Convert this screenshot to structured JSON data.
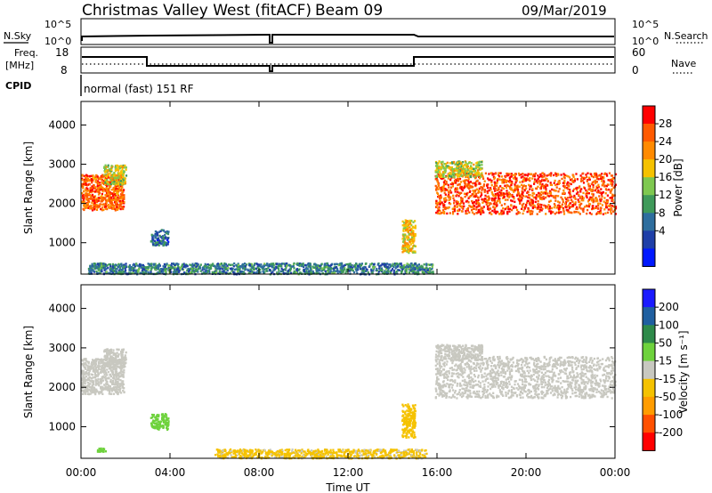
{
  "header": {
    "station": "Christmas Valley West (fitACF)",
    "beam": "Beam 09",
    "date": "09/Mar/2019"
  },
  "strip": {
    "nsky_label": "N.Sky",
    "nsky_ticks": [
      "10^5",
      "10^0"
    ],
    "nsearch_label": "N.Search",
    "nsearch_ticks": [
      "10^5",
      "10^0"
    ],
    "freq_label": "Freq.",
    "freq_unit": "[MHz]",
    "freq_ticks": [
      "18",
      "8"
    ],
    "nave_label": "Nave",
    "nave_ticks": [
      "60",
      "0"
    ],
    "cpid_label": "CPID",
    "cpid_value": "normal (fast) 151 RF"
  },
  "colors": {
    "power_scale": [
      "#0018ff",
      "#1f3fa8",
      "#2e6e9e",
      "#3f9a5a",
      "#7ec850",
      "#f5c200",
      "#ff8a00",
      "#ff5a00",
      "#ff0000"
    ],
    "velocity_scale": [
      "#1a1aff",
      "#1f5fa0",
      "#2e8a4a",
      "#6ed23c",
      "#c8c8c0",
      "#f5c200",
      "#ff9c00",
      "#ff5000",
      "#ff0000"
    ],
    "velocity_gray": "#c8c8c0"
  },
  "chart_data": [
    {
      "type": "heatmap",
      "panel": "power",
      "ylabel": "Slant Range [km]",
      "yticks": [
        "4000",
        "3000",
        "2000",
        "1000"
      ],
      "ylim": [
        200,
        4600
      ],
      "xlim": [
        0,
        24
      ],
      "colorbar": {
        "label": "Power [dB]",
        "ticks": [
          "28",
          "24",
          "20",
          "16",
          "12",
          "8",
          "4"
        ],
        "range": [
          0,
          32
        ]
      },
      "regions": [
        {
          "t0": 0.0,
          "t1": 1.9,
          "r0": 1850,
          "r1": 2750,
          "level": 26
        },
        {
          "t0": 1.0,
          "t1": 2.0,
          "r0": 2500,
          "r1": 3000,
          "level": 18
        },
        {
          "t0": 0.7,
          "t1": 1.1,
          "r0": 380,
          "r1": 500,
          "level": 15
        },
        {
          "t0": 3.1,
          "t1": 3.9,
          "r0": 950,
          "r1": 1350,
          "level": 8
        },
        {
          "t0": 0.3,
          "t1": 15.8,
          "r0": 220,
          "r1": 500,
          "level": 10
        },
        {
          "t0": 14.4,
          "t1": 15.0,
          "r0": 750,
          "r1": 1600,
          "level": 20
        },
        {
          "t0": 15.9,
          "t1": 24.0,
          "r0": 1750,
          "r1": 2800,
          "level": 27
        },
        {
          "t0": 15.9,
          "t1": 18.0,
          "r0": 2700,
          "r1": 3100,
          "level": 18
        }
      ]
    },
    {
      "type": "heatmap",
      "panel": "velocity",
      "ylabel": "Slant Range [km]",
      "yticks": [
        "4000",
        "3000",
        "2000",
        "1000"
      ],
      "ylim": [
        200,
        4600
      ],
      "xlim": [
        0,
        24
      ],
      "xlabel": "Time UT",
      "xticks": [
        "00:00",
        "04:00",
        "08:00",
        "12:00",
        "16:00",
        "20:00",
        "00:00"
      ],
      "colorbar": {
        "label": "Velocity [m s⁻¹]",
        "ticks": [
          "200",
          "100",
          "50",
          "15",
          "-15",
          "-50",
          "-100",
          "-200"
        ],
        "range": [
          -250,
          250
        ]
      },
      "regions": [
        {
          "t0": 0.0,
          "t1": 1.9,
          "r0": 1850,
          "r1": 2750,
          "level": 0
        },
        {
          "t0": 1.0,
          "t1": 2.0,
          "r0": 2500,
          "r1": 3000,
          "level": 0
        },
        {
          "t0": 0.7,
          "t1": 1.1,
          "r0": 380,
          "r1": 500,
          "level": 60
        },
        {
          "t0": 3.1,
          "t1": 3.9,
          "r0": 950,
          "r1": 1350,
          "level": 60
        },
        {
          "t0": 6.0,
          "t1": 15.5,
          "r0": 220,
          "r1": 450,
          "level": -40
        },
        {
          "t0": 14.4,
          "t1": 15.0,
          "r0": 750,
          "r1": 1600,
          "level": -60
        },
        {
          "t0": 15.9,
          "t1": 24.0,
          "r0": 1750,
          "r1": 2800,
          "level": 0
        },
        {
          "t0": 15.9,
          "t1": 18.0,
          "r0": 2700,
          "r1": 3100,
          "level": 0
        }
      ]
    }
  ]
}
